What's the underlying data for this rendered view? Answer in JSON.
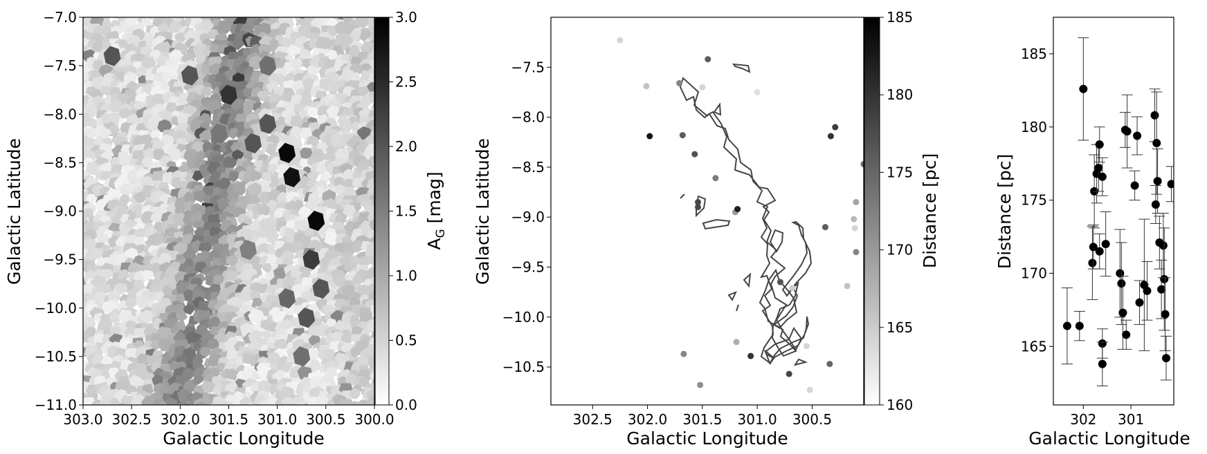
{
  "chart_data": [
    {
      "type": "heatmap",
      "xlabel": "Galactic Longitude",
      "ylabel": "Galactic Latitude",
      "xlim": [
        303.0,
        300.0
      ],
      "ylim": [
        -11.0,
        -7.0
      ],
      "xticks": [
        "303.0",
        "302.5",
        "302.0",
        "301.5",
        "301.0",
        "300.5",
        "300.0"
      ],
      "yticks": [
        "-7.0",
        "-7.5",
        "-8.0",
        "-8.5",
        "-9.0",
        "-9.5",
        "-10.0",
        "-10.5",
        "-11.0"
      ],
      "colorbar": {
        "label": "A",
        "label_sub": "G",
        "label_unit": " [mag]",
        "range": [
          0.0,
          3.0
        ],
        "ticks": [
          "0.0",
          "0.5",
          "1.0",
          "1.5",
          "2.0",
          "2.5",
          "3.0"
        ],
        "colormap": "gray_r"
      },
      "extinction_features": [
        {
          "l": 301.5,
          "b": -7.8,
          "value": 2.4
        },
        {
          "l": 301.1,
          "b": -8.1,
          "value": 2.0
        },
        {
          "l": 300.9,
          "b": -8.4,
          "value": 2.9
        },
        {
          "l": 300.85,
          "b": -8.65,
          "value": 2.8
        },
        {
          "l": 301.25,
          "b": -8.3,
          "value": 2.0
        },
        {
          "l": 300.6,
          "b": -9.1,
          "value": 2.9
        },
        {
          "l": 300.65,
          "b": -9.5,
          "value": 2.3
        },
        {
          "l": 300.7,
          "b": -10.1,
          "value": 2.0
        },
        {
          "l": 300.55,
          "b": -9.8,
          "value": 2.0
        },
        {
          "l": 300.9,
          "b": -9.9,
          "value": 1.8
        },
        {
          "l": 300.75,
          "b": -10.5,
          "value": 1.7
        },
        {
          "l": 301.6,
          "b": -8.2,
          "value": 1.6
        },
        {
          "l": 301.3,
          "b": -9.4,
          "value": 1.5
        },
        {
          "l": 302.7,
          "b": -7.4,
          "value": 2.0
        },
        {
          "l": 301.9,
          "b": -7.6,
          "value": 2.0
        },
        {
          "l": 301.1,
          "b": -7.5,
          "value": 1.7
        }
      ]
    },
    {
      "type": "scatter",
      "xlabel": "Galactic Longitude",
      "ylabel": "Galactic Latitude",
      "xlim": [
        302.88,
        300.03
      ],
      "ylim": [
        -10.88,
        -7.0
      ],
      "xticks": [
        "302.5",
        "302.0",
        "301.5",
        "301.0",
        "300.5"
      ],
      "yticks": [
        "-7.5",
        "-8.0",
        "-8.5",
        "-9.0",
        "-9.5",
        "-10.0",
        "-10.5"
      ],
      "colorbar": {
        "label": "Distance [pc]",
        "range": [
          160,
          185
        ],
        "ticks": [
          "160",
          "165",
          "170",
          "175",
          "180",
          "185"
        ],
        "colormap": "gray_r"
      },
      "contour_level": "cloud outline",
      "points": [
        {
          "l": 302.25,
          "b": -7.23,
          "d": 164
        },
        {
          "l": 302.01,
          "b": -7.69,
          "d": 166
        },
        {
          "l": 301.98,
          "b": -8.19,
          "d": 183
        },
        {
          "l": 301.71,
          "b": -7.66,
          "d": 172
        },
        {
          "l": 301.68,
          "b": -8.18,
          "d": 176
        },
        {
          "l": 301.57,
          "b": -8.37,
          "d": 177
        },
        {
          "l": 301.54,
          "b": -8.85,
          "d": 178
        },
        {
          "l": 301.54,
          "b": -8.9,
          "d": 178
        },
        {
          "l": 301.5,
          "b": -7.7,
          "d": 164
        },
        {
          "l": 301.45,
          "b": -7.42,
          "d": 176
        },
        {
          "l": 301.38,
          "b": -8.61,
          "d": 173
        },
        {
          "l": 301.2,
          "b": -8.95,
          "d": 170
        },
        {
          "l": 301.18,
          "b": -8.92,
          "d": 182
        },
        {
          "l": 301.0,
          "b": -7.75,
          "d": 163
        },
        {
          "l": 301.19,
          "b": -10.25,
          "d": 168
        },
        {
          "l": 301.06,
          "b": -10.39,
          "d": 180
        },
        {
          "l": 300.79,
          "b": -9.65,
          "d": 177
        },
        {
          "l": 300.68,
          "b": -9.71,
          "d": 165
        },
        {
          "l": 300.71,
          "b": -10.57,
          "d": 178
        },
        {
          "l": 300.55,
          "b": -10.29,
          "d": 164
        },
        {
          "l": 300.52,
          "b": -10.73,
          "d": 164
        },
        {
          "l": 300.38,
          "b": -9.1,
          "d": 176
        },
        {
          "l": 300.33,
          "b": -8.19,
          "d": 180
        },
        {
          "l": 300.29,
          "b": -8.1,
          "d": 179
        },
        {
          "l": 300.34,
          "b": -10.47,
          "d": 175
        },
        {
          "l": 300.18,
          "b": -9.69,
          "d": 166
        },
        {
          "l": 301.52,
          "b": -10.68,
          "d": 171
        },
        {
          "l": 301.67,
          "b": -10.37,
          "d": 172
        },
        {
          "l": 300.1,
          "b": -8.85,
          "d": 169
        },
        {
          "l": 300.12,
          "b": -9.02,
          "d": 167
        },
        {
          "l": 300.11,
          "b": -9.11,
          "d": 164
        },
        {
          "l": 300.1,
          "b": -9.35,
          "d": 172
        },
        {
          "l": 300.03,
          "b": -8.47,
          "d": 175
        }
      ]
    },
    {
      "type": "scatter",
      "xlabel": "Galactic Longitude",
      "ylabel": "Distance [pc]",
      "xlim": [
        302.63,
        300.1
      ],
      "ylim": [
        161.0,
        187.5
      ],
      "xticks": [
        "302",
        "301"
      ],
      "yticks": [
        "165",
        "170",
        "175",
        "180",
        "185"
      ],
      "points": [
        {
          "l": 302.34,
          "d": 166.4,
          "err": 2.6
        },
        {
          "l": 302.08,
          "d": 166.4,
          "err": 1.0
        },
        {
          "l": 302.0,
          "d": 182.6,
          "err": 3.5
        },
        {
          "l": 301.81,
          "d": 170.7,
          "err": 2.5
        },
        {
          "l": 301.79,
          "d": 171.8,
          "err": 1.5
        },
        {
          "l": 301.77,
          "d": 175.6,
          "err": 2.5
        },
        {
          "l": 301.72,
          "d": 176.8,
          "err": 2.0
        },
        {
          "l": 301.68,
          "d": 177.2,
          "err": 1.6
        },
        {
          "l": 301.66,
          "d": 178.8,
          "err": 1.2
        },
        {
          "l": 301.6,
          "d": 176.6,
          "err": 1.3
        },
        {
          "l": 301.66,
          "d": 171.5,
          "err": 1.2
        },
        {
          "l": 301.53,
          "d": 172.0,
          "err": 2.2
        },
        {
          "l": 301.6,
          "d": 165.2,
          "err": 1.0
        },
        {
          "l": 301.6,
          "d": 163.8,
          "err": 1.5
        },
        {
          "l": 301.23,
          "d": 170.0,
          "err": 3.0
        },
        {
          "l": 301.2,
          "d": 169.3,
          "err": 2.8
        },
        {
          "l": 301.17,
          "d": 167.3,
          "err": 2.5
        },
        {
          "l": 301.1,
          "d": 165.8,
          "err": 1.0
        },
        {
          "l": 301.12,
          "d": 179.8,
          "err": 1.2
        },
        {
          "l": 301.08,
          "d": 179.7,
          "err": 2.5
        },
        {
          "l": 300.92,
          "d": 176.0,
          "err": 1.0
        },
        {
          "l": 300.87,
          "d": 179.4,
          "err": 1.3
        },
        {
          "l": 300.82,
          "d": 168.0,
          "err": 1.5
        },
        {
          "l": 300.72,
          "d": 169.2,
          "err": 4.5
        },
        {
          "l": 300.66,
          "d": 168.8,
          "err": 2.0
        },
        {
          "l": 300.5,
          "d": 180.8,
          "err": 1.8
        },
        {
          "l": 300.46,
          "d": 178.9,
          "err": 3.5
        },
        {
          "l": 300.44,
          "d": 176.3,
          "err": 2.2
        },
        {
          "l": 300.48,
          "d": 174.7,
          "err": 1.3
        },
        {
          "l": 300.4,
          "d": 172.1,
          "err": 1.8
        },
        {
          "l": 300.36,
          "d": 168.9,
          "err": 2.0
        },
        {
          "l": 300.32,
          "d": 171.9,
          "err": 2.2
        },
        {
          "l": 300.3,
          "d": 169.6,
          "err": 3.5
        },
        {
          "l": 300.28,
          "d": 167.2,
          "err": 2.5
        },
        {
          "l": 300.26,
          "d": 164.2,
          "err": 1.5
        },
        {
          "l": 300.15,
          "d": 176.1,
          "err": 1.2
        }
      ]
    }
  ]
}
